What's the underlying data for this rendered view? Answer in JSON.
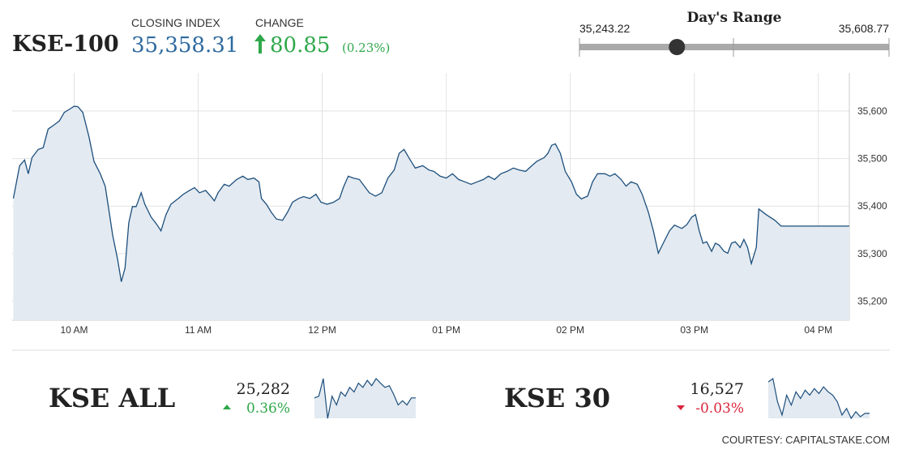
{
  "header": {
    "name": "KSE-100",
    "closing_label": "CLOSING INDEX",
    "closing": {
      "value": 35358.31,
      "label": "35,358.31"
    },
    "change_label": "CHANGE",
    "change": 80.85,
    "change_pct": "(0.23%)"
  },
  "day_range": {
    "title": "Day's Range",
    "low": {
      "value": 35243.22,
      "label": "35,243.22"
    },
    "high": {
      "value": 35608.77,
      "label": "35,608.77"
    }
  },
  "chart_data": {
    "type": "area",
    "x": [
      9.51,
      9.56,
      9.6,
      9.63,
      9.66,
      9.71,
      9.75,
      9.79,
      9.84,
      9.88,
      9.92,
      9.97,
      10.0,
      10.03,
      10.07,
      10.12,
      10.16,
      10.21,
      10.25,
      10.28,
      10.31,
      10.35,
      10.38,
      10.41,
      10.44,
      10.47,
      10.5,
      10.54,
      10.57,
      10.62,
      10.67,
      10.7,
      10.74,
      10.78,
      10.84,
      10.88,
      10.93,
      10.97,
      11.01,
      11.06,
      11.1,
      11.13,
      11.16,
      11.21,
      11.25,
      11.31,
      11.36,
      11.4,
      11.45,
      11.49,
      11.51,
      11.55,
      11.59,
      11.63,
      11.68,
      11.72,
      11.76,
      11.81,
      11.85,
      11.9,
      11.95,
      11.99,
      12.04,
      12.09,
      12.14,
      12.17,
      12.21,
      12.25,
      12.3,
      12.34,
      12.38,
      12.43,
      12.48,
      12.53,
      12.58,
      12.62,
      12.66,
      12.71,
      12.75,
      12.81,
      12.86,
      12.9,
      12.95,
      13.0,
      13.05,
      13.1,
      13.15,
      13.2,
      13.25,
      13.3,
      13.34,
      13.39,
      13.44,
      13.49,
      13.54,
      13.59,
      13.64,
      13.69,
      13.73,
      13.79,
      13.82,
      13.85,
      13.88,
      13.92,
      13.96,
      14.01,
      14.05,
      14.09,
      14.14,
      14.18,
      14.22,
      14.28,
      14.32,
      14.36,
      14.41,
      14.45,
      14.49,
      14.54,
      14.58,
      14.63,
      14.67,
      14.71,
      14.75,
      14.8,
      14.84,
      14.9,
      14.94,
      14.98,
      15.01,
      15.04,
      15.07,
      15.1,
      15.14,
      15.17,
      15.2,
      15.24,
      15.27,
      15.3,
      15.33,
      15.37,
      15.4,
      15.43,
      15.46,
      15.5,
      15.52,
      15.58,
      15.65,
      15.7,
      16.25
    ],
    "values": [
      35416,
      35485,
      35497,
      35468,
      35502,
      35519,
      35523,
      35562,
      35571,
      35579,
      35597,
      35605,
      35610,
      35609,
      35597,
      35545,
      35494,
      35468,
      35442,
      35391,
      35339,
      35288,
      35241,
      35270,
      35365,
      35399,
      35399,
      35428,
      35404,
      35377,
      35360,
      35348,
      35382,
      35404,
      35416,
      35425,
      35433,
      35439,
      35428,
      35433,
      35421,
      35411,
      35428,
      35446,
      35442,
      35456,
      35463,
      35456,
      35459,
      35451,
      35416,
      35404,
      35387,
      35373,
      35370,
      35387,
      35408,
      35416,
      35420,
      35416,
      35425,
      35408,
      35404,
      35408,
      35416,
      35439,
      35463,
      35459,
      35456,
      35442,
      35428,
      35421,
      35428,
      35459,
      35476,
      35511,
      35519,
      35497,
      35480,
      35485,
      35476,
      35473,
      35463,
      35459,
      35468,
      35456,
      35451,
      35446,
      35451,
      35456,
      35463,
      35456,
      35468,
      35473,
      35480,
      35476,
      35473,
      35485,
      35494,
      35502,
      35511,
      35528,
      35531,
      35511,
      35473,
      35451,
      35425,
      35415,
      35421,
      35451,
      35468,
      35468,
      35463,
      35468,
      35456,
      35442,
      35451,
      35446,
      35425,
      35387,
      35348,
      35301,
      35322,
      35348,
      35360,
      35353,
      35361,
      35377,
      35382,
      35348,
      35322,
      35325,
      35305,
      35322,
      35318,
      35305,
      35301,
      35322,
      35325,
      35313,
      35330,
      35313,
      35279,
      35313,
      35394,
      35382,
      35370,
      35358,
      35358
    ],
    "xlim": [
      9.5,
      16.25
    ],
    "ylim": [
      35160,
      35680
    ],
    "xticks": [
      {
        "value": 10,
        "label": "10 AM"
      },
      {
        "value": 11,
        "label": "11 AM"
      },
      {
        "value": 12,
        "label": "12 PM"
      },
      {
        "value": 13,
        "label": "01 PM"
      },
      {
        "value": 14,
        "label": "02 PM"
      },
      {
        "value": 15,
        "label": "03 PM"
      },
      {
        "value": 16,
        "label": "04 PM"
      }
    ],
    "yticks": [
      {
        "value": 35200,
        "label": "35,200"
      },
      {
        "value": 35300,
        "label": "35,300"
      },
      {
        "value": 35400,
        "label": "35,400"
      },
      {
        "value": 35500,
        "label": "35,500"
      },
      {
        "value": 35600,
        "label": "35,600"
      }
    ],
    "color": "#1d4f7c",
    "area_color": "#e3eaf1",
    "grid": true
  },
  "indices": [
    {
      "name": "KSE ALL",
      "value": "25,282",
      "change": "0.36%",
      "direction": "up",
      "spark": [
        25238,
        25243,
        25293,
        25180,
        25243,
        25218,
        25255,
        25243,
        25268,
        25255,
        25280,
        25268,
        25288,
        25273,
        25293,
        25280,
        25268,
        25273,
        25248,
        25218,
        25230,
        25218,
        25238,
        25238
      ]
    },
    {
      "name": "KSE 30",
      "value": "16,527",
      "change": "-0.03%",
      "direction": "down",
      "spark": [
        16600,
        16610,
        16540,
        16500,
        16560,
        16530,
        16570,
        16550,
        16575,
        16560,
        16580,
        16565,
        16585,
        16570,
        16560,
        16540,
        16500,
        16520,
        16490,
        16510,
        16495,
        16505,
        16505
      ]
    }
  ],
  "courtesy": "COURTESY: CAPITALSTAKE.COM"
}
